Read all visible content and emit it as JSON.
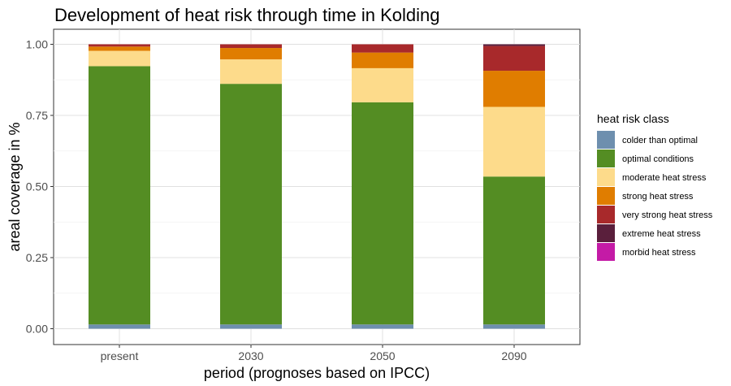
{
  "chart_data": {
    "type": "bar",
    "stacked": true,
    "title": "Development of heat risk through time in Kolding",
    "xlabel": "period (prognoses based on IPCC)",
    "ylabel": "areal coverage in %",
    "ylim": [
      0,
      1
    ],
    "yticks": [
      "0.00",
      "0.25",
      "0.50",
      "0.75",
      "1.00"
    ],
    "categories": [
      "present",
      "2030",
      "2050",
      "2090"
    ],
    "grid": true,
    "legend_position": "right",
    "legend_title": "heat risk class",
    "series": [
      {
        "name": "colder than optimal",
        "color": "#6E8FAE",
        "values": [
          0.015,
          0.015,
          0.015,
          0.015
        ]
      },
      {
        "name": "optimal conditions",
        "color": "#548D23",
        "values": [
          0.908,
          0.846,
          0.781,
          0.52
        ]
      },
      {
        "name": "moderate heat stress",
        "color": "#FDDB8B",
        "values": [
          0.054,
          0.086,
          0.12,
          0.245
        ]
      },
      {
        "name": "strong heat stress",
        "color": "#E07D00",
        "values": [
          0.015,
          0.04,
          0.055,
          0.127
        ]
      },
      {
        "name": "very strong heat stress",
        "color": "#A8292B",
        "values": [
          0.008,
          0.013,
          0.029,
          0.087
        ]
      },
      {
        "name": "extreme heat stress",
        "color": "#5A1F3C",
        "values": [
          0.0,
          0.0,
          0.0,
          0.006
        ]
      },
      {
        "name": "morbid heat stress",
        "color": "#C41BA6",
        "values": [
          0.0,
          0.0,
          0.0,
          0.0
        ]
      }
    ]
  }
}
